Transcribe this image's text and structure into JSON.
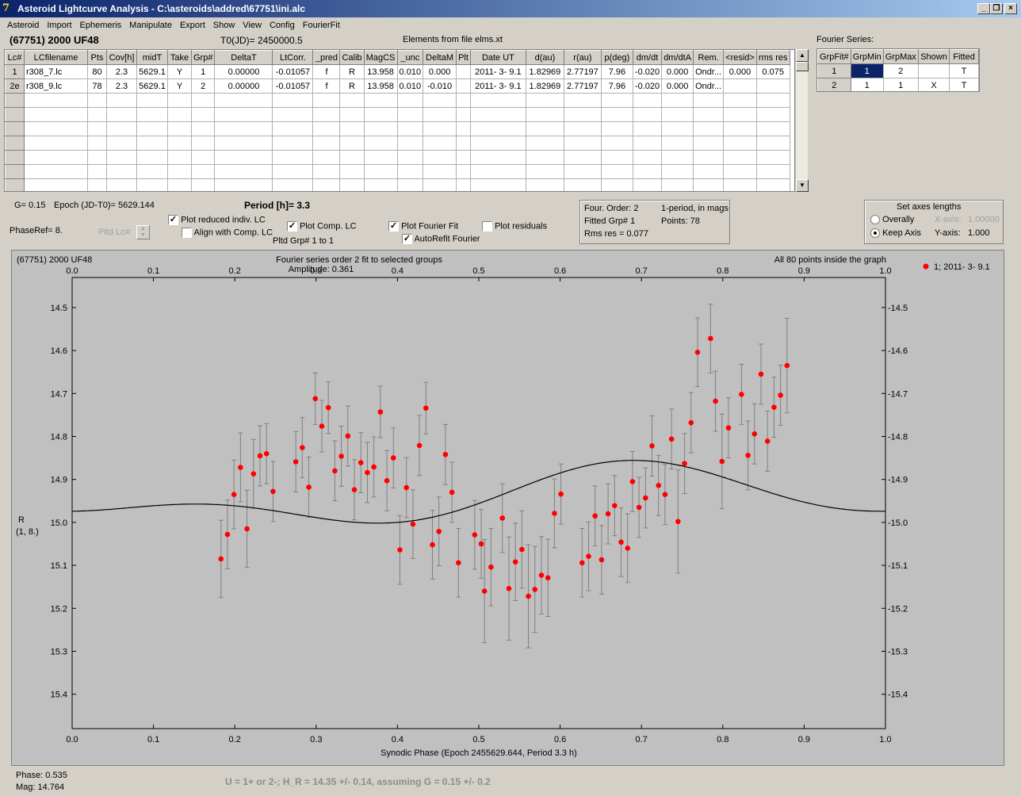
{
  "window": {
    "title": "Asteroid Lightcurve Analysis - C:\\asteroids\\addred\\67751\\ini.alc",
    "icon": "7"
  },
  "menu": [
    "Asteroid",
    "Import",
    "Ephemeris",
    "Manipulate",
    "Export",
    "Show",
    "View",
    "Config",
    "FourierFit"
  ],
  "header": {
    "asteroid": "(67751) 2000 UF48",
    "t0": "T0(JD)= 2450000.5",
    "elements": "Elements from file elms.xt",
    "fourier_series_label": "Fourier Series:"
  },
  "lc_table": {
    "columns": [
      "Lc#",
      "LCfilename",
      "Pts",
      "Cov[h]",
      "midT",
      "Take",
      "Grp#",
      "DeltaT",
      "LtCorr.",
      "_pred",
      "Calib",
      "MagCS",
      "_unc",
      "DeltaM",
      "Plt",
      "Date UT",
      "d(au)",
      "r(au)",
      "p(deg)",
      "dm/dt",
      "dm/dtA",
      "Rem.",
      "<resid>",
      "rms res"
    ],
    "rows": [
      [
        "1",
        "r308_7.lc",
        "80",
        "2.3",
        "5629.1",
        "Y",
        "1",
        "0.00000",
        "-0.01057",
        "f",
        "R",
        "13.958",
        "0.010",
        "0.000",
        "",
        "2011- 3- 9.1",
        "1.82969",
        "2.77197",
        "7.96",
        "-0.020",
        "0.000",
        "Ondr...",
        "0.000",
        "0.075"
      ],
      [
        "2e",
        "r308_9.lc",
        "78",
        "2.3",
        "5629.1",
        "Y",
        "2",
        "0.00000",
        "-0.01057",
        "f",
        "R",
        "13.958",
        "0.010",
        "-0.010",
        "",
        "2011- 3- 9.1",
        "1.82969",
        "2.77197",
        "7.96",
        "-0.020",
        "0.000",
        "Ondr...",
        "",
        ""
      ]
    ],
    "empty_rows": 7
  },
  "fourier_table": {
    "columns": [
      "GrpFit#",
      "GrpMin",
      "GrpMax",
      "Shown",
      "Fitted"
    ],
    "rows": [
      [
        "1",
        "1",
        "2",
        "",
        "T"
      ],
      [
        "2",
        "1",
        "1",
        "X",
        "T"
      ]
    ]
  },
  "controls": {
    "g_label": "G= 0.15",
    "epoch_label": "Epoch (JD-T0)= 5629.144",
    "period_label": "Period [h]= 3.3",
    "phaseref_label": "PhaseRef= 8.",
    "pltd_lc_label": "Pltd Lc#:",
    "plot_reduced": "Plot reduced indiv. LC",
    "align_comp": "Align with Comp. LC",
    "plot_comp": "Plot Comp. LC",
    "pltd_grp": "Pltd Grp#  1   to    1",
    "plot_fourier": "Plot Fourier Fit",
    "autorefit": "AutoRefit Fourier",
    "plot_residuals": "Plot residuals",
    "plot_reduced_checked": true,
    "align_comp_checked": false,
    "plot_comp_checked": true,
    "plot_fourier_checked": true,
    "autorefit_checked": true,
    "plot_residuals_checked": false,
    "check_mark": "✓"
  },
  "fourier_info": {
    "order": "Four. Order:  2",
    "period_mode": "1-period, in mags",
    "fitted_grp": "Fitted Grp# 1",
    "points": "Points: 78",
    "rms": "Rms res     = 0.077"
  },
  "axes_box": {
    "title": "Set axes lengths",
    "overally": "Overally",
    "keep_axis": "Keep Axis",
    "x_axis_label": "X-axis:",
    "x_axis_value": "1.00000",
    "y_axis_label": "Y-axis:",
    "y_axis_value": "1.000"
  },
  "plot": {
    "corner_title": "(67751) 2000 UF48",
    "fit_title": "Fourier series order 2 fit to selected groups",
    "amplitude": "Amplitude: 0.361",
    "points_note": "All 80 points inside the graph",
    "legend_entry": "1; 2011- 3- 9.1",
    "ylabel_line1": "R",
    "ylabel_line2": "(1, 8.)",
    "xlabel": "Synodic Phase (Epoch 2455629.644, Period 3.3 h)"
  },
  "footer": {
    "phase": "Phase:  0.535",
    "mag": "Mag:    14.764",
    "note": "U = 1+ or 2-; H_R = 14.35 +/- 0.14, assuming G = 0.15 +/- 0.2"
  },
  "chart_data": {
    "type": "scatter",
    "title": "Fourier series order 2 fit to selected groups",
    "xlabel": "Synodic Phase (Epoch 2455629.644, Period 3.3 h)",
    "ylabel": "R",
    "xlim": [
      0.0,
      1.0
    ],
    "ylim": [
      14.43,
      15.48
    ],
    "y_inverted": true,
    "x_ticks": [
      0.0,
      0.1,
      0.2,
      0.3,
      0.4,
      0.5,
      0.6,
      0.7,
      0.8,
      0.9,
      1.0
    ],
    "y_ticks": [
      14.5,
      14.6,
      14.7,
      14.8,
      14.9,
      15.0,
      15.1,
      15.2,
      15.3,
      15.4
    ],
    "legend": "top-right",
    "point_color": "#ff0000",
    "errorbar_color": "#808080",
    "fit_color": "#000000",
    "series": [
      {
        "name": "1; 2011- 3- 9.1",
        "points": [
          [
            0.183,
            15.085,
            0.09
          ],
          [
            0.191,
            15.028,
            0.08
          ],
          [
            0.199,
            14.935,
            0.08
          ],
          [
            0.207,
            14.872,
            0.08
          ],
          [
            0.215,
            15.015,
            0.09
          ],
          [
            0.223,
            14.887,
            0.08
          ],
          [
            0.231,
            14.845,
            0.07
          ],
          [
            0.239,
            14.84,
            0.07
          ],
          [
            0.247,
            14.928,
            0.07
          ],
          [
            0.275,
            14.859,
            0.07
          ],
          [
            0.283,
            14.826,
            0.07
          ],
          [
            0.291,
            14.918,
            0.07
          ],
          [
            0.299,
            14.712,
            0.06
          ],
          [
            0.307,
            14.776,
            0.06
          ],
          [
            0.315,
            14.733,
            0.06
          ],
          [
            0.323,
            14.88,
            0.07
          ],
          [
            0.331,
            14.846,
            0.07
          ],
          [
            0.339,
            14.799,
            0.07
          ],
          [
            0.347,
            14.924,
            0.07
          ],
          [
            0.355,
            14.861,
            0.07
          ],
          [
            0.363,
            14.884,
            0.07
          ],
          [
            0.371,
            14.871,
            0.07
          ],
          [
            0.379,
            14.743,
            0.06
          ],
          [
            0.387,
            14.903,
            0.07
          ],
          [
            0.395,
            14.85,
            0.07
          ],
          [
            0.403,
            15.064,
            0.08
          ],
          [
            0.411,
            14.919,
            0.07
          ],
          [
            0.419,
            15.004,
            0.08
          ],
          [
            0.427,
            14.821,
            0.07
          ],
          [
            0.435,
            14.734,
            0.06
          ],
          [
            0.443,
            15.052,
            0.08
          ],
          [
            0.451,
            15.021,
            0.08
          ],
          [
            0.459,
            14.842,
            0.07
          ],
          [
            0.467,
            14.93,
            0.07
          ],
          [
            0.475,
            15.094,
            0.08
          ],
          [
            0.495,
            15.029,
            0.08
          ],
          [
            0.503,
            15.05,
            0.08
          ],
          [
            0.507,
            15.16,
            0.12
          ],
          [
            0.515,
            15.104,
            0.09
          ],
          [
            0.529,
            14.99,
            0.08
          ],
          [
            0.537,
            15.154,
            0.12
          ],
          [
            0.545,
            15.092,
            0.09
          ],
          [
            0.553,
            15.063,
            0.09
          ],
          [
            0.561,
            15.172,
            0.12
          ],
          [
            0.569,
            15.156,
            0.1
          ],
          [
            0.577,
            15.123,
            0.09
          ],
          [
            0.585,
            15.129,
            0.09
          ],
          [
            0.593,
            14.979,
            0.08
          ],
          [
            0.601,
            14.934,
            0.07
          ],
          [
            0.627,
            15.094,
            0.08
          ],
          [
            0.635,
            15.079,
            0.08
          ],
          [
            0.643,
            14.985,
            0.07
          ],
          [
            0.651,
            15.087,
            0.08
          ],
          [
            0.659,
            14.98,
            0.07
          ],
          [
            0.667,
            14.961,
            0.07
          ],
          [
            0.675,
            15.046,
            0.08
          ],
          [
            0.683,
            15.06,
            0.08
          ],
          [
            0.689,
            14.905,
            0.07
          ],
          [
            0.697,
            14.965,
            0.07
          ],
          [
            0.705,
            14.943,
            0.07
          ],
          [
            0.713,
            14.822,
            0.07
          ],
          [
            0.721,
            14.914,
            0.07
          ],
          [
            0.729,
            14.935,
            0.07
          ],
          [
            0.737,
            14.806,
            0.07
          ],
          [
            0.745,
            14.998,
            0.12
          ],
          [
            0.753,
            14.863,
            0.07
          ],
          [
            0.761,
            14.768,
            0.07
          ],
          [
            0.769,
            14.604,
            0.08
          ],
          [
            0.785,
            14.572,
            0.08
          ],
          [
            0.791,
            14.718,
            0.07
          ],
          [
            0.799,
            14.858,
            0.11
          ],
          [
            0.807,
            14.78,
            0.07
          ],
          [
            0.823,
            14.702,
            0.07
          ],
          [
            0.831,
            14.844,
            0.08
          ],
          [
            0.839,
            14.794,
            0.07
          ],
          [
            0.847,
            14.655,
            0.07
          ],
          [
            0.855,
            14.811,
            0.07
          ],
          [
            0.863,
            14.732,
            0.07
          ],
          [
            0.871,
            14.704,
            0.07
          ],
          [
            0.879,
            14.635,
            0.11
          ]
        ]
      },
      {
        "name": "Fourier fit",
        "fourier_mean": 14.943,
        "fourier_coeffs": [
          [
            0.0,
            0.0
          ],
          [
            0.009,
            0.0525
          ],
          [
            0.022,
            -0.028
          ]
        ]
      }
    ]
  }
}
